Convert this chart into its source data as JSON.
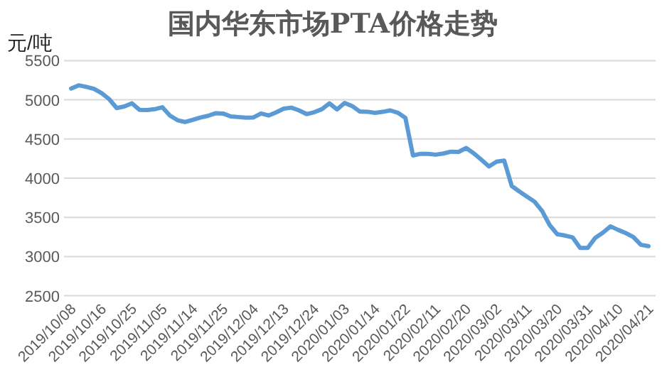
{
  "chart_data": {
    "type": "line",
    "title": "国内华东市场PTA价格走势",
    "ylabel": "元/吨",
    "categories": [
      "2019/10/08",
      null,
      null,
      null,
      "2019/10/16",
      null,
      null,
      null,
      "2019/10/25",
      null,
      null,
      null,
      "2019/11/05",
      null,
      null,
      null,
      "2019/11/14",
      null,
      null,
      null,
      "2019/11/25",
      null,
      null,
      null,
      "2019/12/04",
      null,
      null,
      null,
      "2019/12/13",
      null,
      null,
      null,
      "2019/12/24",
      null,
      null,
      null,
      "2020/01/03",
      null,
      null,
      null,
      "2020/01/14",
      null,
      null,
      null,
      "2020/01/22",
      null,
      null,
      null,
      "2020/02/11",
      null,
      null,
      null,
      "2020/02/20",
      null,
      null,
      null,
      "2020/03/02",
      null,
      null,
      null,
      "2020/03/11",
      null,
      null,
      null,
      "2020/03/20",
      null,
      null,
      null,
      "2020/03/31",
      null,
      null,
      null,
      "2020/04/10",
      null,
      null,
      null,
      "2020/04/21"
    ],
    "values": [
      5144,
      5185,
      5165,
      5140,
      5085,
      5010,
      4895,
      4915,
      4955,
      4872,
      4870,
      4880,
      4905,
      4800,
      4740,
      4716,
      4745,
      4774,
      4795,
      4828,
      4825,
      4788,
      4780,
      4773,
      4775,
      4826,
      4800,
      4840,
      4888,
      4900,
      4865,
      4817,
      4842,
      4880,
      4955,
      4877,
      4960,
      4920,
      4850,
      4848,
      4834,
      4846,
      4865,
      4835,
      4770,
      4290,
      4311,
      4311,
      4300,
      4315,
      4338,
      4335,
      4385,
      4317,
      4235,
      4150,
      4210,
      4225,
      3900,
      3830,
      3765,
      3700,
      3580,
      3400,
      3284,
      3268,
      3245,
      3110,
      3110,
      3240,
      3305,
      3385,
      3340,
      3300,
      3250,
      3150,
      3133
    ],
    "color": "#5b9bd5",
    "ylim": [
      2500,
      5500
    ],
    "yticks": [
      2500,
      3000,
      3500,
      4000,
      4500,
      5000,
      5500
    ],
    "grid": "y"
  }
}
